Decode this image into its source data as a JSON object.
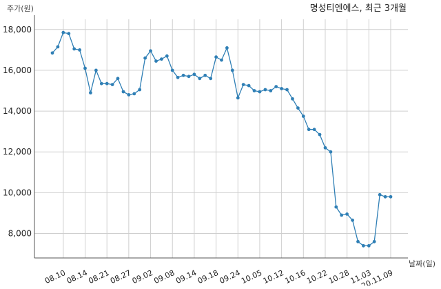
{
  "chart_data": {
    "type": "line",
    "title": "명성티엔에스, 최근 3개월",
    "ylabel": "주가(원)",
    "xlabel": "날짜(일)",
    "ylim": [
      6800,
      18500
    ],
    "yticks": [
      8000,
      10000,
      12000,
      14000,
      16000,
      18000
    ],
    "ytick_labels": [
      "8,000",
      "10,000",
      "12,000",
      "14,000",
      "16,000",
      "18,000"
    ],
    "xtick_labels": [
      "08.10",
      "08.14",
      "08.21",
      "08.27",
      "09.02",
      "09.08",
      "09.14",
      "09.18",
      "09.24",
      "10.05",
      "10.12",
      "10.16",
      "10.22",
      "10.28",
      "11.03",
      "20.11.09"
    ],
    "xtick_index": [
      2,
      6,
      10,
      14,
      18,
      22,
      26,
      30,
      34,
      38,
      42,
      46,
      50,
      54,
      58,
      62
    ],
    "grid": true,
    "line_color": "#2f7fb5",
    "series": [
      {
        "values": [
          16850,
          17150,
          17850,
          17800,
          17050,
          17000,
          16100,
          14900,
          16000,
          15350,
          15350,
          15300,
          15600,
          14950,
          14800,
          14850,
          15050,
          16600,
          16950,
          16450,
          16550,
          16700,
          16000,
          15650,
          15750,
          15700,
          15800,
          15600,
          15750,
          15600,
          16650,
          16500,
          17100,
          16000,
          14650,
          15300,
          15250,
          15000,
          14950,
          15050,
          15000,
          15200,
          15100,
          15050,
          14600,
          14150,
          13750,
          13100,
          13100,
          12850,
          12200,
          12000,
          9300,
          8900,
          8950,
          8650,
          7600,
          7400,
          7400,
          7600,
          9900,
          9800,
          9800
        ]
      }
    ]
  }
}
